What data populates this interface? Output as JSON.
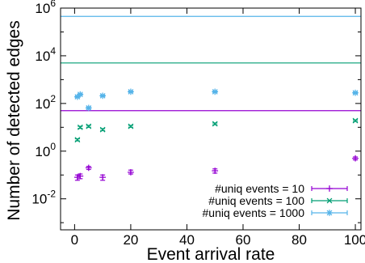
{
  "chart_data": {
    "type": "scatter",
    "xlabel": "Event arrival rate",
    "ylabel": "Number of detected edges",
    "xlim": [
      -5,
      102
    ],
    "ylim_log10": [
      -3.3,
      6
    ],
    "log_scale_y": true,
    "grid": false,
    "legend_position": "bottom-right",
    "x_ticks": [
      0,
      20,
      40,
      60,
      80,
      100
    ],
    "x_tick_labels": [
      "0",
      "20",
      "40",
      "60",
      "80",
      "100"
    ],
    "y_ticks_log10": [
      -2,
      0,
      2,
      4,
      6
    ],
    "y_tick_labels": [
      {
        "base": "10",
        "exp": "-2"
      },
      {
        "base": "10",
        "exp": "0"
      },
      {
        "base": "10",
        "exp": "2"
      },
      {
        "base": "10",
        "exp": "4"
      },
      {
        "base": "10",
        "exp": "6"
      }
    ],
    "series": [
      {
        "name": "#uniq events = 10",
        "color": "#9400d3",
        "marker": "plus",
        "x": [
          1,
          2,
          5,
          10,
          20,
          50,
          100
        ],
        "y": [
          0.08,
          0.09,
          0.2,
          0.08,
          0.13,
          0.15,
          0.5
        ],
        "err_low": [
          0.06,
          0.07,
          0.17,
          0.06,
          0.11,
          0.12,
          0.43
        ],
        "err_high": [
          0.1,
          0.11,
          0.23,
          0.1,
          0.16,
          0.18,
          0.57
        ],
        "reference_line": 50
      },
      {
        "name": "#uniq events = 100",
        "color": "#009e73",
        "marker": "cross",
        "x": [
          1,
          2,
          5,
          10,
          20,
          50,
          100
        ],
        "y": [
          3,
          10,
          11,
          8,
          11,
          14,
          19
        ],
        "err_low": [
          2.7,
          9,
          10,
          7.2,
          10,
          12.8,
          17.5
        ],
        "err_high": [
          3.3,
          11,
          12,
          8.8,
          12,
          15.2,
          20.5
        ],
        "reference_line": 5000
      },
      {
        "name": "#uniq events = 1000",
        "color": "#56b4e9",
        "marker": "star",
        "x": [
          1,
          2,
          5,
          10,
          20,
          50,
          100
        ],
        "y": [
          190,
          240,
          65,
          210,
          310,
          310,
          280
        ],
        "err_low": [
          175,
          222,
          58,
          195,
          290,
          290,
          260
        ],
        "err_high": [
          205,
          258,
          72,
          225,
          330,
          330,
          300
        ],
        "reference_line": 450000
      }
    ]
  }
}
